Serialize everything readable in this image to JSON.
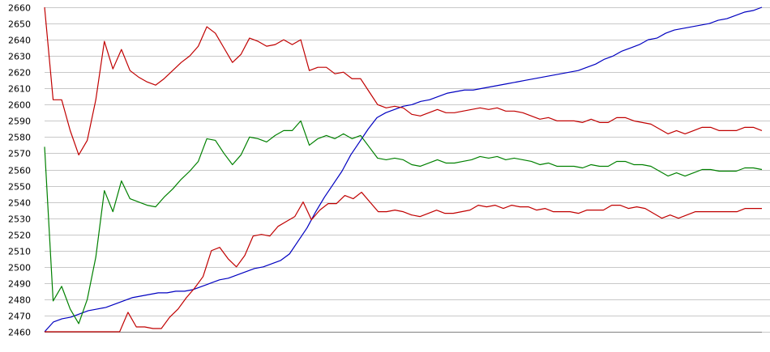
{
  "chart_data": {
    "type": "line",
    "title": "",
    "xlabel": "",
    "ylabel": "",
    "ylim": [
      2460,
      2660
    ],
    "ytick_labels": [
      "2660",
      "2650",
      "2640",
      "2630",
      "2620",
      "2610",
      "2600",
      "2590",
      "2580",
      "2570",
      "2560",
      "2550",
      "2540",
      "2530",
      "2520",
      "2510",
      "2500",
      "2490",
      "2480",
      "2470",
      "2460"
    ],
    "grid": "horizontal",
    "legend": "none",
    "series": [
      {
        "color": "#0000c0",
        "values": [
          2460,
          2466,
          2468,
          2469,
          2471,
          2473,
          2474,
          2475,
          2477,
          2479,
          2481,
          2482,
          2483,
          2484,
          2484,
          2485,
          2485,
          2486,
          2488,
          2490,
          2492,
          2493,
          2495,
          2497,
          2499,
          2500,
          2502,
          2504,
          2508,
          2516,
          2524,
          2534,
          2543,
          2551,
          2559,
          2569,
          2577,
          2585,
          2592,
          2595,
          2597,
          2599,
          2600,
          2602,
          2603,
          2605,
          2607,
          2608,
          2609,
          2609,
          2610,
          2611,
          2612,
          2613,
          2614,
          2615,
          2616,
          2617,
          2618,
          2619,
          2620,
          2621,
          2623,
          2625,
          2628,
          2630,
          2633,
          2635,
          2637,
          2640,
          2641,
          2644,
          2646,
          2647,
          2648,
          2649,
          2650,
          2652,
          2653,
          2655,
          2657,
          2658,
          2660
        ]
      },
      {
        "color": "#c00000",
        "values": [
          2660,
          2603,
          2603,
          2584,
          2569,
          2578,
          2603,
          2639,
          2622,
          2634,
          2621,
          2617,
          2614,
          2612,
          2616,
          2621,
          2626,
          2630,
          2636,
          2648,
          2644,
          2635,
          2626,
          2631,
          2641,
          2639,
          2636,
          2637,
          2640,
          2637,
          2640,
          2621,
          2623,
          2623,
          2619,
          2620,
          2616,
          2616,
          2608,
          2600,
          2598,
          2599,
          2598,
          2594,
          2593,
          2595,
          2597,
          2595,
          2595,
          2596,
          2597,
          2598,
          2597,
          2598,
          2596,
          2596,
          2595,
          2593,
          2591,
          2592,
          2590,
          2590,
          2590,
          2589,
          2591,
          2589,
          2589,
          2592,
          2592,
          2590,
          2589,
          2588,
          2585,
          2582,
          2584,
          2582,
          2584,
          2586,
          2586,
          2584,
          2584,
          2584,
          2586,
          2586,
          2584
        ]
      },
      {
        "color": "#008000",
        "values": [
          2574,
          2479,
          2488,
          2474,
          2465,
          2480,
          2506,
          2547,
          2534,
          2553,
          2542,
          2540,
          2538,
          2537,
          2543,
          2548,
          2554,
          2559,
          2565,
          2579,
          2578,
          2570,
          2563,
          2569,
          2580,
          2579,
          2577,
          2581,
          2584,
          2584,
          2590,
          2575,
          2579,
          2581,
          2579,
          2582,
          2579,
          2581,
          2574,
          2567,
          2566,
          2567,
          2566,
          2563,
          2562,
          2564,
          2566,
          2564,
          2564,
          2565,
          2566,
          2568,
          2567,
          2568,
          2566,
          2567,
          2566,
          2565,
          2563,
          2564,
          2562,
          2562,
          2562,
          2561,
          2563,
          2562,
          2562,
          2565,
          2565,
          2563,
          2563,
          2562,
          2559,
          2556,
          2558,
          2556,
          2558,
          2560,
          2560,
          2559,
          2559,
          2559,
          2561,
          2561,
          2560
        ]
      },
      {
        "color": "#c00000",
        "values": [
          2460,
          2460,
          2460,
          2460,
          2460,
          2460,
          2460,
          2460,
          2460,
          2460,
          2472,
          2463,
          2463,
          2462,
          2462,
          2469,
          2474,
          2481,
          2487,
          2494,
          2510,
          2512,
          2505,
          2500,
          2507,
          2519,
          2520,
          2519,
          2525,
          2528,
          2531,
          2540,
          2529,
          2535,
          2539,
          2539,
          2544,
          2542,
          2546,
          2540,
          2534,
          2534,
          2535,
          2534,
          2532,
          2531,
          2533,
          2535,
          2533,
          2533,
          2534,
          2535,
          2538,
          2537,
          2538,
          2536,
          2538,
          2537,
          2537,
          2535,
          2536,
          2534,
          2534,
          2534,
          2533,
          2535,
          2535,
          2535,
          2538,
          2538,
          2536,
          2537,
          2536,
          2533,
          2530,
          2532,
          2530,
          2532,
          2534,
          2534,
          2534,
          2534,
          2534,
          2534,
          2536,
          2536,
          2536
        ]
      }
    ]
  }
}
